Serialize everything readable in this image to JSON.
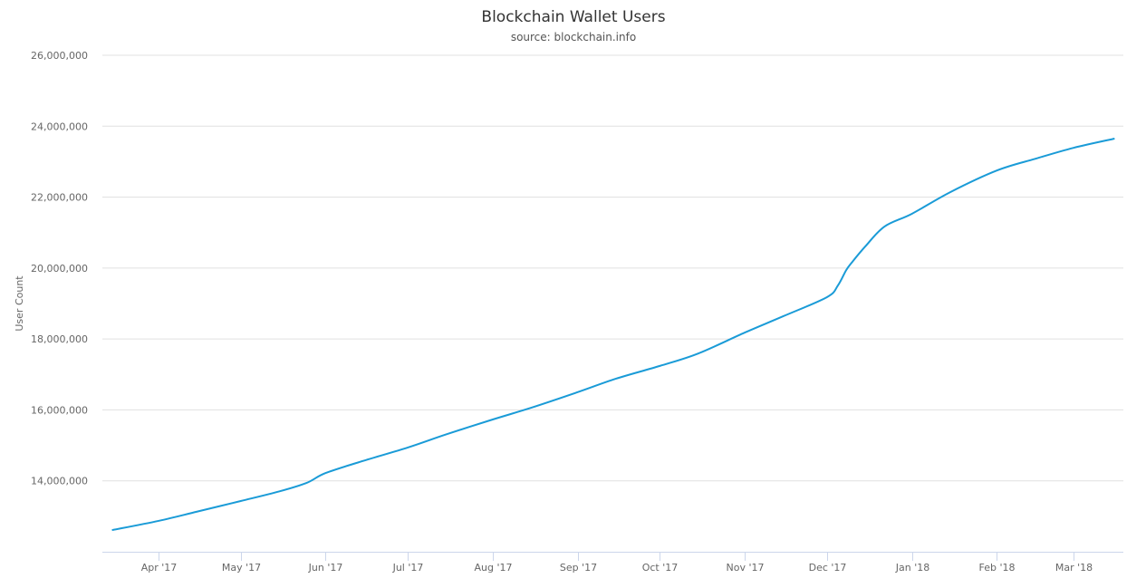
{
  "chart_data": {
    "type": "line",
    "title": "Blockchain Wallet Users",
    "subtitle": "source: blockchain.info",
    "xlabel": "",
    "ylabel": "User Count",
    "ylim": [
      12000000,
      26000000
    ],
    "xlim": [
      "2017-03-10",
      "2018-03-28"
    ],
    "grid": {
      "y": true,
      "x": false
    },
    "legend": "none",
    "color": "#1a9bd7",
    "y_ticks": [
      {
        "value": 14000000,
        "label": "14,000,000"
      },
      {
        "value": 16000000,
        "label": "16,000,000"
      },
      {
        "value": 18000000,
        "label": "18,000,000"
      },
      {
        "value": 20000000,
        "label": "20,000,000"
      },
      {
        "value": 22000000,
        "label": "22,000,000"
      },
      {
        "value": 24000000,
        "label": "24,000,000"
      },
      {
        "value": 26000000,
        "label": "26,000,000"
      }
    ],
    "x_ticks": [
      {
        "date": "2017-04-01",
        "label": "Apr '17"
      },
      {
        "date": "2017-05-01",
        "label": "May '17"
      },
      {
        "date": "2017-06-01",
        "label": "Jun '17"
      },
      {
        "date": "2017-07-01",
        "label": "Jul '17"
      },
      {
        "date": "2017-08-01",
        "label": "Aug '17"
      },
      {
        "date": "2017-09-01",
        "label": "Sep '17"
      },
      {
        "date": "2017-10-01",
        "label": "Oct '17"
      },
      {
        "date": "2017-11-01",
        "label": "Nov '17"
      },
      {
        "date": "2017-12-01",
        "label": "Dec '17"
      },
      {
        "date": "2018-01-01",
        "label": "Jan '18"
      },
      {
        "date": "2018-02-01",
        "label": "Feb '18"
      },
      {
        "date": "2018-03-01",
        "label": "Mar '18"
      }
    ],
    "series": [
      {
        "x": [
          "2017-03-15",
          "2017-04-01",
          "2017-04-15",
          "2017-05-01",
          "2017-05-15",
          "2017-05-25",
          "2017-06-01",
          "2017-06-15",
          "2017-07-01",
          "2017-07-15",
          "2017-08-01",
          "2017-08-15",
          "2017-09-01",
          "2017-09-15",
          "2017-10-01",
          "2017-10-15",
          "2017-11-01",
          "2017-11-15",
          "2017-12-01",
          "2017-12-05",
          "2017-12-08",
          "2017-12-10",
          "2017-12-15",
          "2017-12-22",
          "2018-01-01",
          "2018-01-15",
          "2018-02-01",
          "2018-02-15",
          "2018-03-01",
          "2018-03-16"
        ],
        "y": [
          12610000,
          12870000,
          13130000,
          13430000,
          13700000,
          13940000,
          14220000,
          14570000,
          14940000,
          15310000,
          15730000,
          16060000,
          16500000,
          16880000,
          17240000,
          17590000,
          18180000,
          18640000,
          19180000,
          19510000,
          19940000,
          20150000,
          20610000,
          21170000,
          21530000,
          22140000,
          22750000,
          23080000,
          23390000,
          23650000
        ]
      }
    ]
  }
}
